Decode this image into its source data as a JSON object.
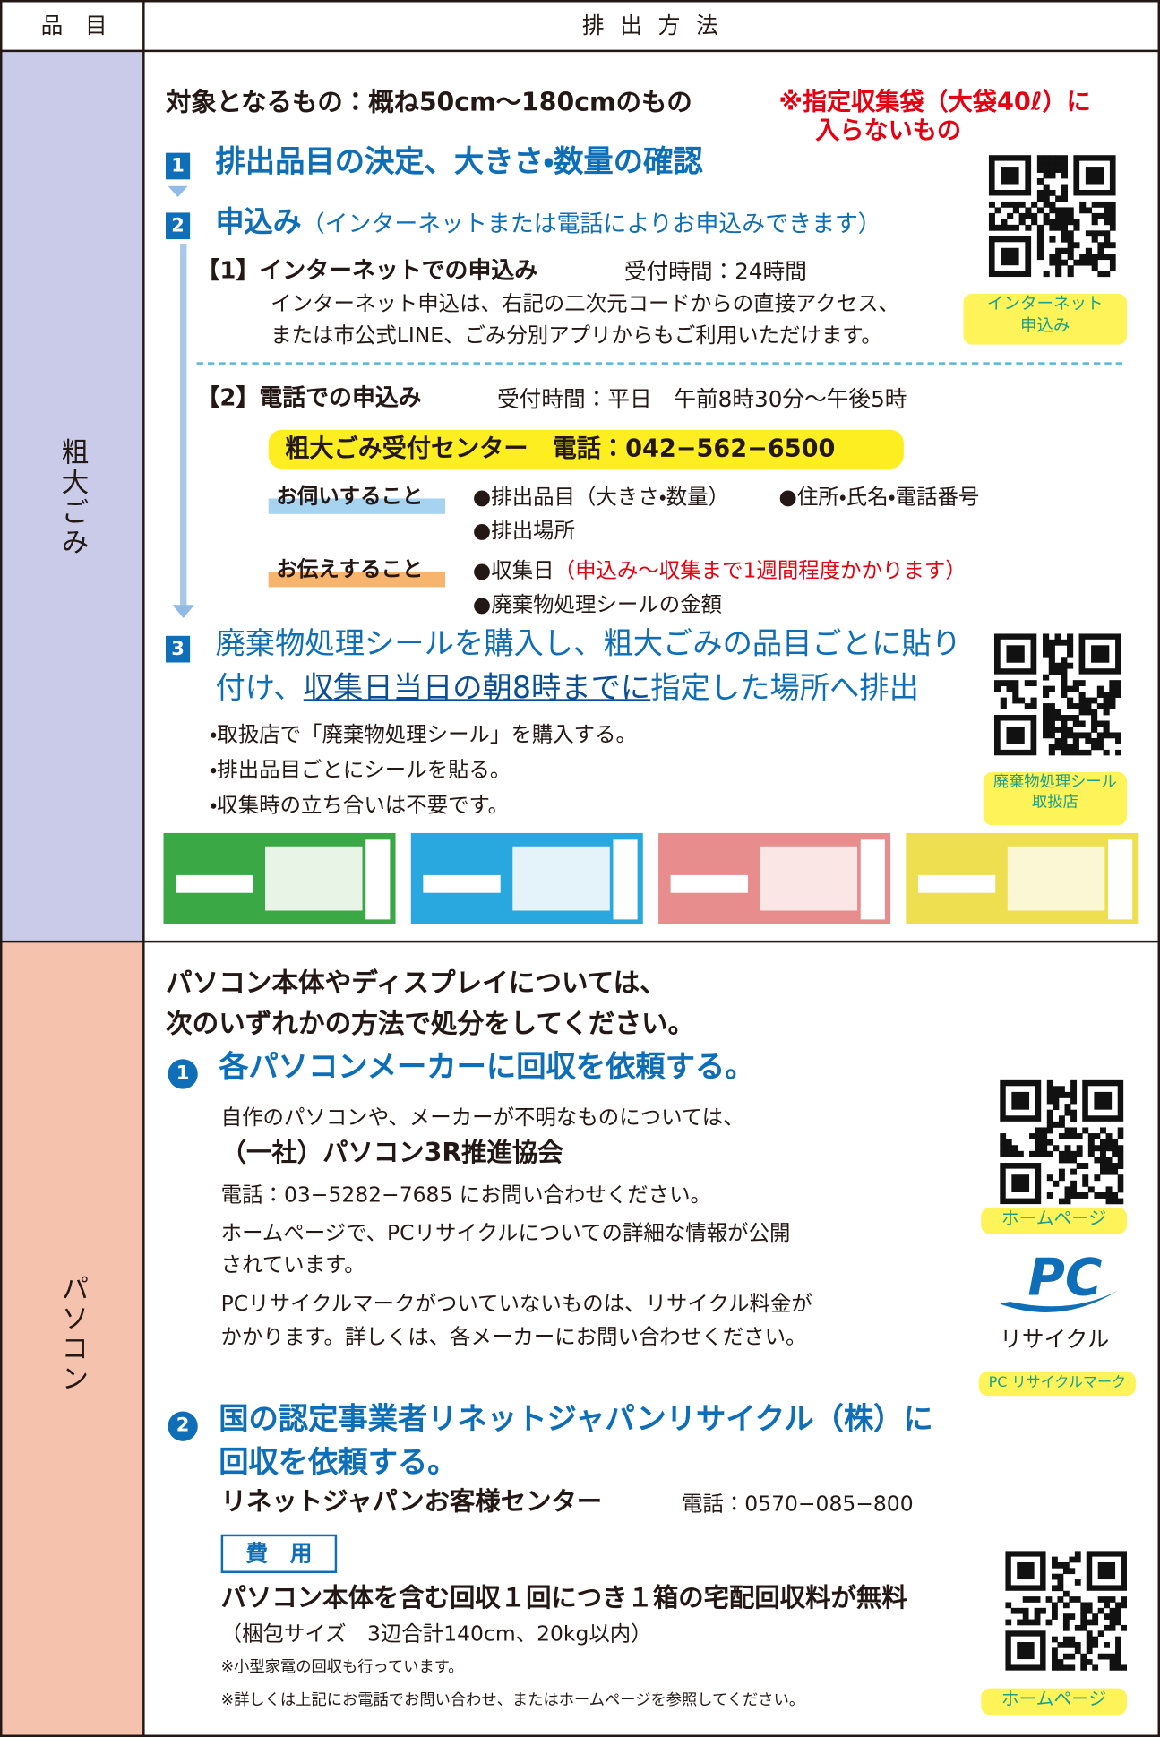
{
  "header": {
    "item": "品　目",
    "method": "排 出 方 法"
  },
  "bulky": {
    "label": "粗大ごみ",
    "target": "対象となるもの：概ね50cm～180cmのもの",
    "target_note": [
      "※指定収集袋（大袋40ℓ）に",
      "入らないもの"
    ],
    "steps": [
      {
        "number": "1",
        "title": "排出品目の決定、大きさ・数量の確認"
      },
      {
        "number": "2",
        "title": "申込み",
        "title_note": "（インターネットまたは電話によりお申込みできます）"
      },
      {
        "number": "3",
        "title": [
          "廃棄物処理シールを購入し、粗大ごみの品目ごとに貼り",
          "付け、",
          "収集日当日の朝8時までに",
          "指定した場所へ排出"
        ]
      }
    ],
    "internet": {
      "heading": "【1】インターネットでの申込み",
      "hours": "受付時間：24時間",
      "text": [
        "インターネット申込は、右記の二次元コードからの直接アクセス、",
        "または市公式LINE、ごみ分別アプリからもご利用いただけます。"
      ],
      "qr_caption": [
        "インターネット",
        "申込み"
      ]
    },
    "phone": {
      "heading": "【2】電話での申込み",
      "hours": "受付時間：平日　午前8時30分～午後5時",
      "center": "粗大ごみ受付センター　電話：042−562−6500",
      "ask_label": "お伺いすること",
      "ask_items": [
        "●排出品目（大きさ・数量）",
        "●住所・氏名・電話番号",
        "●排出場所"
      ],
      "tell_label": "お伝えすること",
      "tell_items": [
        "●収集日",
        "（申込み～収集まで1週間程度かかります）",
        "●廃棄物処理シールの金額"
      ]
    },
    "purchase_notes": [
      "・取扱店で「廃棄物処理シール」を購入する。",
      "・排出品目ごとにシールを貼る。",
      "・収集時の立ち合いは不要です。"
    ],
    "sticker_qr_caption": [
      "廃棄物処理シール",
      "取扱店"
    ]
  },
  "pc": {
    "label": "パソコン",
    "intro": [
      "パソコン本体やディスプレイについては、",
      "次のいずれかの方法で処分をしてください。"
    ],
    "option1": {
      "number": "1",
      "title": "各パソコンメーカーに回収を依頼する。",
      "text1": "自作のパソコンや、メーカーが不明なものについては、",
      "org": "（一社）パソコン3R推進協会",
      "phone": "電話：03−5282−7685 にお問い合わせください。",
      "text2": [
        "ホームページで、PCリサイクルについての詳細な情報が公開",
        "されています。"
      ],
      "text3": [
        "PCリサイクルマークがついていないものは、リサイクル料金が",
        "かかります。詳しくは、各メーカーにお問い合わせください。"
      ],
      "qr_caption": "ホームページ",
      "mark_logo": "PC",
      "mark_text": "リサイクル",
      "mark_caption": "PC リサイクルマーク"
    },
    "option2": {
      "number": "2",
      "title": [
        "国の認定事業者リネットジャパンリサイクル（株）に",
        "回収を依頼する。"
      ],
      "center": "リネットジャパンお客様センター",
      "phone": "電話：0570−085−800",
      "fee_label": "費　用",
      "fee": "パソコン本体を含む回収１回につき１箱の宅配回収料が無料",
      "size": "（梱包サイズ　3辺合計140cm、20kg以内）",
      "notes": [
        "※小型家電の回収も行っています。",
        "※詳しくは上記にお電話でお問い合わせ、またはホームページを参照してください。"
      ],
      "qr_caption": "ホームページ"
    }
  }
}
